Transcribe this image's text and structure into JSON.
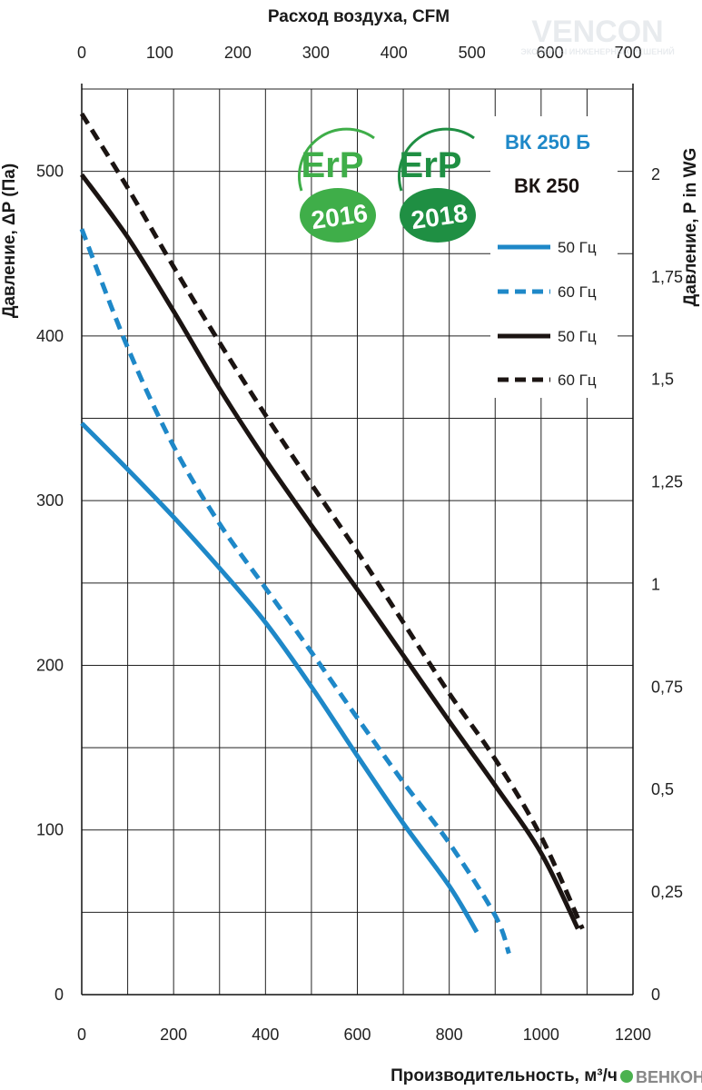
{
  "watermark": {
    "brand": "VENCON",
    "tagline": "ЭКСПЕРТЫ ИНЖЕНЕРНЫХ РЕШЕНИЙ",
    "bottom": "ВЕНКОН"
  },
  "badges": [
    {
      "name": "ErP",
      "year": "2016",
      "color": "#3fae49"
    },
    {
      "name": "ErP",
      "year": "2018",
      "color": "#1f8f43"
    }
  ],
  "legend": {
    "title_b": "ВК 250 Б",
    "title": "ВК 250",
    "entries": [
      "50 Гц",
      "60 Гц",
      "50 Гц",
      "60 Гц"
    ]
  },
  "colors": {
    "blue": "#1e88c8",
    "black": "#1b1412",
    "grid": "#222222"
  },
  "chart_data": {
    "type": "line",
    "xlabel": "Производительность, м³/ч",
    "x2label": "Расход воздуха, CFM",
    "ylabel": "Давление, ΔP (Па)",
    "y2label": "Давление, P in WG",
    "xlim": [
      0,
      1200
    ],
    "ylim": [
      0,
      550
    ],
    "x_ticks": [
      "0",
      "200",
      "400",
      "600",
      "800",
      "1000",
      "1200"
    ],
    "x2_ticks": [
      "0",
      "100",
      "200",
      "300",
      "400",
      "500",
      "600",
      "700"
    ],
    "y_ticks": [
      "0",
      "100",
      "200",
      "300",
      "400",
      "500"
    ],
    "y2_ticks": [
      "0",
      "0,25",
      "0,5",
      "0,75",
      "1",
      "1,25",
      "1,5",
      "1,75",
      "2"
    ],
    "grid": true,
    "series": [
      {
        "model": "ВК 250 Б",
        "freq": "50 Гц",
        "color": "#1e88c8",
        "dashed": false,
        "x": [
          0,
          100,
          200,
          300,
          400,
          500,
          600,
          700,
          800,
          860
        ],
        "y": [
          347,
          319,
          290,
          259,
          226,
          187,
          145,
          104,
          66,
          38
        ]
      },
      {
        "model": "ВК 250 Б",
        "freq": "60 Гц",
        "color": "#1e88c8",
        "dashed": true,
        "x": [
          0,
          100,
          200,
          300,
          400,
          500,
          600,
          700,
          800,
          900,
          930
        ],
        "y": [
          465,
          393,
          333,
          286,
          247,
          208,
          168,
          129,
          92,
          48,
          25
        ]
      },
      {
        "model": "ВК 250",
        "freq": "50 Гц",
        "color": "#1b1412",
        "dashed": false,
        "x": [
          0,
          100,
          200,
          300,
          400,
          500,
          600,
          700,
          800,
          900,
          1000,
          1080
        ],
        "y": [
          498,
          460,
          415,
          368,
          325,
          285,
          246,
          206,
          166,
          127,
          86,
          40
        ]
      },
      {
        "model": "ВК 250",
        "freq": "60 Гц",
        "color": "#1b1412",
        "dashed": true,
        "x": [
          0,
          100,
          200,
          300,
          400,
          500,
          600,
          700,
          800,
          900,
          1000,
          1090
        ],
        "y": [
          535,
          490,
          442,
          396,
          352,
          310,
          269,
          226,
          183,
          143,
          96,
          40
        ]
      }
    ]
  }
}
